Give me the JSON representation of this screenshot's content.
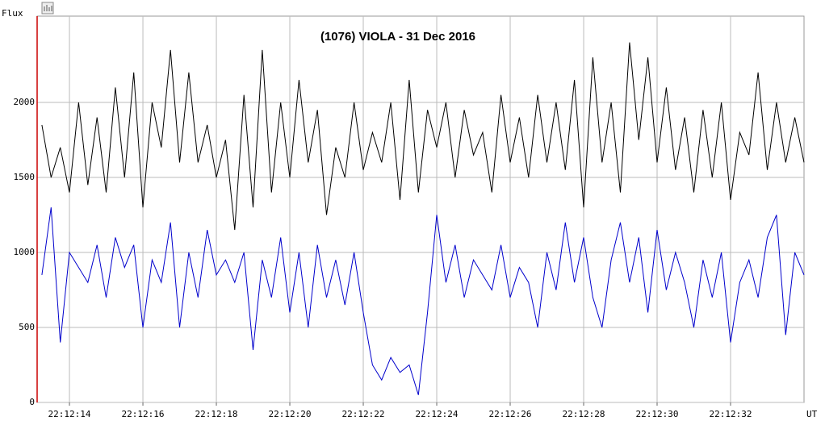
{
  "chart_data": {
    "type": "line",
    "title": "(1076) VIOLA - 31 Dec 2016",
    "ylabel": "Flux",
    "xlabel": "UT",
    "x": [
      13.25,
      13.5,
      13.75,
      14,
      14.25,
      14.5,
      14.75,
      15,
      15.25,
      15.5,
      15.75,
      16,
      16.25,
      16.5,
      16.75,
      17,
      17.25,
      17.5,
      17.75,
      18,
      18.25,
      18.5,
      18.75,
      19,
      19.25,
      19.5,
      19.75,
      20,
      20.25,
      20.5,
      20.75,
      21,
      21.25,
      21.5,
      21.75,
      22,
      22.25,
      22.5,
      22.75,
      23,
      23.25,
      23.5,
      23.75,
      24,
      24.25,
      24.5,
      24.75,
      25,
      25.25,
      25.5,
      25.75,
      26,
      26.25,
      26.5,
      26.75,
      27,
      27.25,
      27.5,
      27.75,
      28,
      28.25,
      28.5,
      28.75,
      29,
      29.25,
      29.5,
      29.75,
      30,
      30.25,
      30.5,
      30.75,
      31,
      31.25,
      31.5,
      31.75,
      32,
      32.25,
      32.5,
      32.75,
      33,
      33.25,
      33.5,
      33.75,
      34
    ],
    "series": [
      {
        "color": "#000000",
        "values": [
          1850,
          1500,
          1700,
          1400,
          2000,
          1450,
          1900,
          1400,
          2100,
          1500,
          2200,
          1300,
          2000,
          1700,
          2350,
          1600,
          2200,
          1600,
          1850,
          1500,
          1750,
          1150,
          2050,
          1300,
          2350,
          1400,
          2000,
          1500,
          2150,
          1600,
          1950,
          1250,
          1700,
          1500,
          2000,
          1550,
          1800,
          1600,
          2000,
          1350,
          2150,
          1400,
          1950,
          1700,
          2000,
          1500,
          1950,
          1650,
          1800,
          1400,
          2050,
          1600,
          1900,
          1500,
          2050,
          1600,
          2000,
          1550,
          2150,
          1300,
          2300,
          1600,
          2000,
          1400,
          2400,
          1750,
          2300,
          1600,
          2100,
          1550,
          1900,
          1400,
          1950,
          1500,
          2000,
          1350,
          1800,
          1650,
          2200,
          1550,
          2000,
          1600,
          1900,
          1600
        ]
      },
      {
        "color": "#0000cc",
        "values": [
          850,
          1300,
          400,
          1000,
          900,
          800,
          1050,
          700,
          1100,
          900,
          1050,
          500,
          950,
          800,
          1200,
          500,
          1000,
          700,
          1150,
          850,
          950,
          800,
          1000,
          350,
          950,
          700,
          1100,
          600,
          1000,
          500,
          1050,
          700,
          950,
          650,
          1000,
          600,
          250,
          150,
          300,
          200,
          250,
          50,
          600,
          1250,
          800,
          1050,
          700,
          950,
          850,
          750,
          1050,
          700,
          900,
          800,
          500,
          1000,
          750,
          1200,
          800,
          1100,
          700,
          500,
          950,
          1200,
          800,
          1100,
          600,
          1150,
          750,
          1000,
          800,
          500,
          950,
          700,
          1000,
          400,
          800,
          950,
          700,
          1100,
          1250,
          450,
          1000,
          850
        ]
      }
    ],
    "xlim": [
      13.12,
      34.0
    ],
    "xticks": [
      {
        "value": 14,
        "label": "22:12:14"
      },
      {
        "value": 16,
        "label": "22:12:16"
      },
      {
        "value": 18,
        "label": "22:12:18"
      },
      {
        "value": 20,
        "label": "22:12:20"
      },
      {
        "value": 22,
        "label": "22:12:22"
      },
      {
        "value": 24,
        "label": "22:12:24"
      },
      {
        "value": 26,
        "label": "22:12:26"
      },
      {
        "value": 28,
        "label": "22:12:28"
      },
      {
        "value": 30,
        "label": "22:12:30"
      },
      {
        "value": 32,
        "label": "22:12:32"
      }
    ],
    "ylim": [
      0,
      2575
    ],
    "yticks": [
      0,
      500,
      1000,
      1500,
      2000
    ],
    "grid": true
  }
}
